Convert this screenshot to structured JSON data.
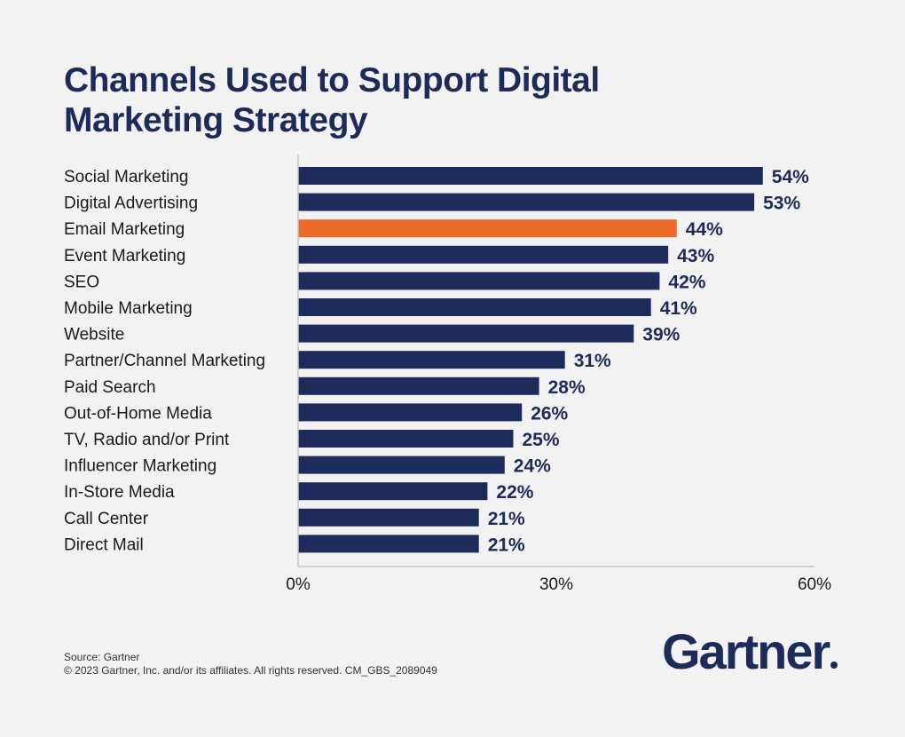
{
  "title": "Channels Used to Support Digital Marketing Strategy",
  "footer": {
    "source": "Source: Gartner",
    "copyright": "© 2023 Gartner, Inc. and/or its affiliates. All rights reserved. CM_GBS_2089049"
  },
  "logo": {
    "text": "Gartner"
  },
  "chart_data": {
    "type": "bar",
    "orientation": "horizontal",
    "title": "Channels Used to Support Digital Marketing Strategy",
    "xlabel": "",
    "ylabel": "",
    "xlim": [
      0,
      60
    ],
    "ticks": [
      0,
      30,
      60
    ],
    "tick_labels": [
      "0%",
      "30%",
      "60%"
    ],
    "grid": false,
    "categories": [
      "Social Marketing",
      "Digital Advertising",
      "Email Marketing",
      "Event Marketing",
      "SEO",
      "Mobile Marketing",
      "Website",
      "Partner/Channel Marketing",
      "Paid Search",
      "Out-of-Home Media",
      "TV, Radio and/or Print",
      "Influencer Marketing",
      "In-Store Media",
      "Call Center",
      "Direct Mail"
    ],
    "values": [
      54,
      53,
      44,
      43,
      42,
      41,
      39,
      31,
      28,
      26,
      25,
      24,
      22,
      21,
      21
    ],
    "value_labels": [
      "54%",
      "53%",
      "44%",
      "43%",
      "42%",
      "41%",
      "39%",
      "31%",
      "28%",
      "26%",
      "25%",
      "24%",
      "22%",
      "21%",
      "21%"
    ],
    "highlight_index": 2,
    "colors": {
      "bar": "#1c2b5a",
      "highlight": "#ee6a2a",
      "axis": "#c8c8c8"
    }
  }
}
